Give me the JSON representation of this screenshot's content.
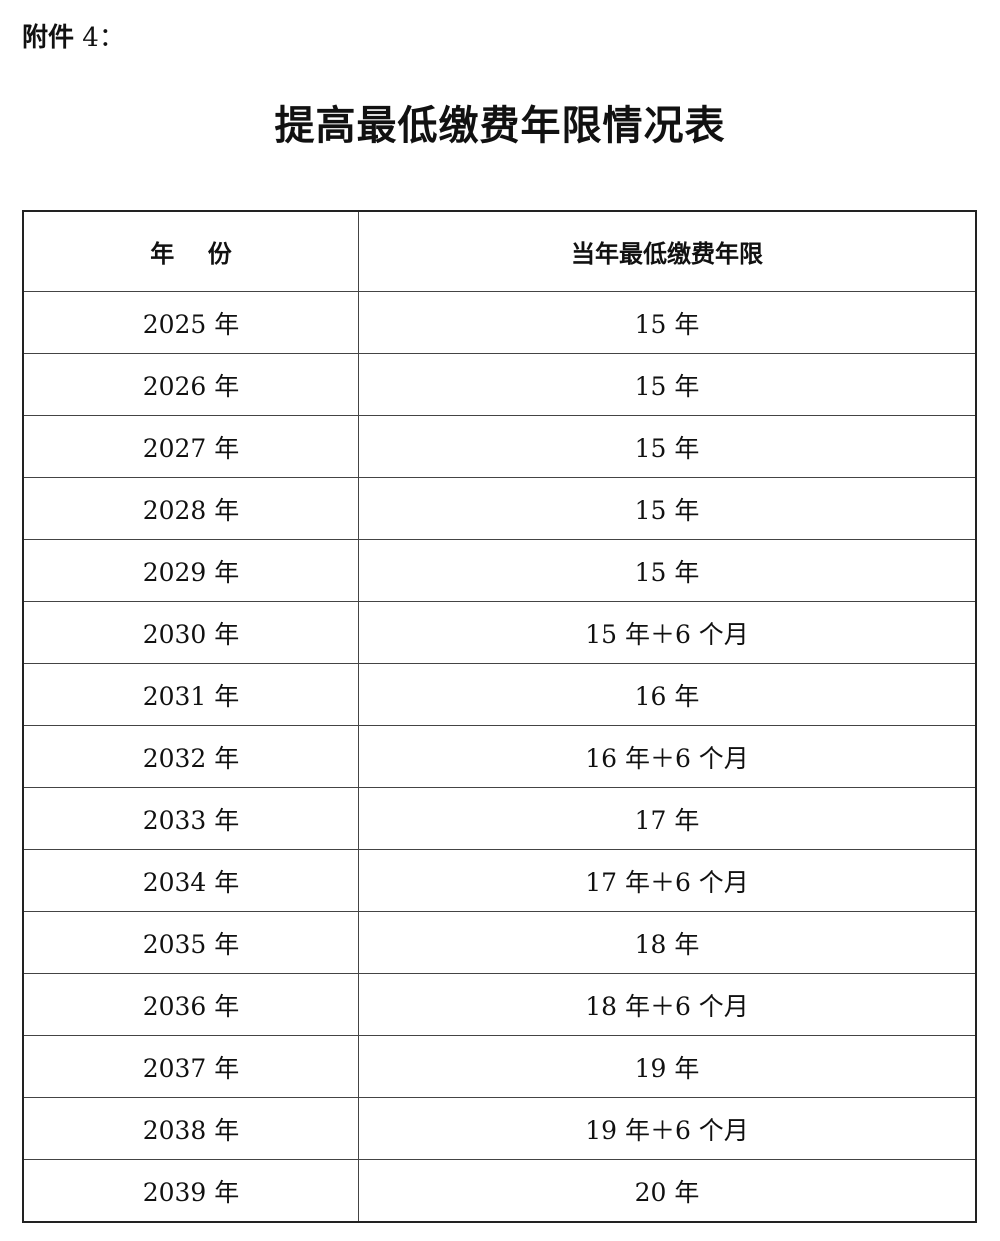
{
  "attachment": {
    "label": "附件",
    "number": " 4："
  },
  "title": "提高最低缴费年限情况表",
  "table": {
    "headers": [
      "年    份",
      "当年最低缴费年限"
    ],
    "rows": [
      [
        "2025 年",
        "15 年"
      ],
      [
        "2026 年",
        "15 年"
      ],
      [
        "2027 年",
        "15 年"
      ],
      [
        "2028 年",
        "15 年"
      ],
      [
        "2029 年",
        "15 年"
      ],
      [
        "2030 年",
        "15 年＋6 个月"
      ],
      [
        "2031 年",
        "16 年"
      ],
      [
        "2032 年",
        "16 年＋6 个月"
      ],
      [
        "2033 年",
        "17 年"
      ],
      [
        "2034 年",
        "17 年＋6 个月"
      ],
      [
        "2035 年",
        "18 年"
      ],
      [
        "2036 年",
        "18 年＋6 个月"
      ],
      [
        "2037 年",
        "19 年"
      ],
      [
        "2038 年",
        "19 年＋6 个月"
      ],
      [
        "2039 年",
        "20 年"
      ]
    ]
  }
}
